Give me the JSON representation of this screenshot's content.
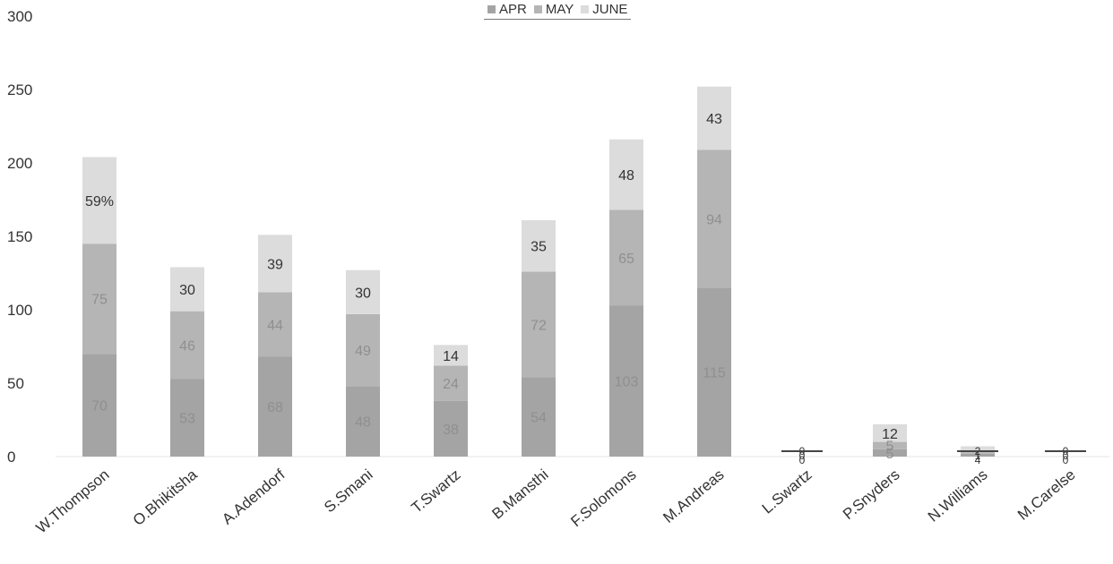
{
  "chart_data": {
    "type": "bar",
    "stacked": true,
    "categories": [
      "W.Thompson",
      "O.Bhikitsha",
      "A.Adendorf",
      "S.Smani",
      "T.Swartz",
      "B.Mansthi",
      "F.Solomons",
      "M.Andreas",
      "L.Swartz",
      "P.Snyders",
      "N.Williams",
      "M.Carelse"
    ],
    "series": [
      {
        "name": "APR",
        "values": [
          70,
          53,
          68,
          48,
          38,
          54,
          103,
          115,
          0,
          5,
          2,
          0
        ]
      },
      {
        "name": "MAY",
        "values": [
          75,
          46,
          44,
          49,
          24,
          72,
          65,
          94,
          0,
          5,
          1,
          0
        ]
      },
      {
        "name": "JUNE",
        "values": [
          59,
          30,
          39,
          30,
          14,
          35,
          48,
          43,
          0,
          12,
          4,
          0
        ]
      }
    ],
    "data_labels": [
      [
        "70",
        "53",
        "68",
        "48",
        "38",
        "54",
        "103",
        "115",
        "0",
        "5",
        "2",
        "0"
      ],
      [
        "75",
        "46",
        "44",
        "49",
        "24",
        "72",
        "65",
        "94",
        "0",
        "5",
        "1",
        "0"
      ],
      [
        "59%",
        "30",
        "39",
        "30",
        "14",
        "35",
        "48",
        "43",
        "0",
        "12",
        "4",
        "0"
      ]
    ],
    "y_ticks": [
      "0",
      "50",
      "100",
      "150",
      "200",
      "250",
      "300"
    ],
    "ylim": [
      0,
      300
    ],
    "grid": false,
    "legend_position": "top",
    "colors": {
      "APR": "#a4a4a4",
      "MAY": "#b5b5b5",
      "JUNE": "#dcdcdc",
      "text": "#333333",
      "inner_label": "#8f8f8f"
    }
  }
}
